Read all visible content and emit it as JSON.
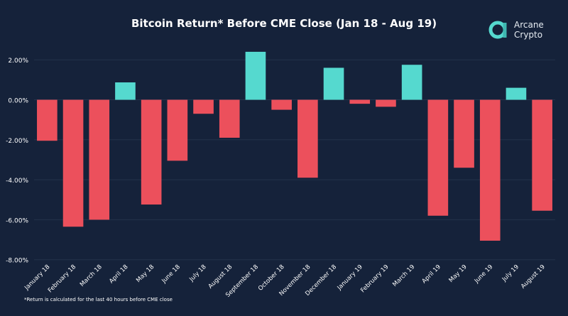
{
  "chart_data": {
    "type": "bar",
    "title": "Bitcoin Return* Before CME Close (Jan 18 - Aug 19)",
    "xlabel": "",
    "ylabel": "",
    "ylim": [
      -8,
      2.6
    ],
    "yticks": [
      2,
      0,
      -2,
      -4,
      -6,
      -8
    ],
    "ytick_labels": [
      "2.00%",
      "0.00%",
      "-2.00%",
      "-4.00%",
      "-6.00%",
      "-8.00%"
    ],
    "grid": true,
    "categories": [
      "January 18",
      "February 18",
      "March 18",
      "April 18",
      "May 18",
      "June 18",
      "July 18",
      "August 18",
      "September 18",
      "October 18",
      "November 18",
      "December 18",
      "January 19",
      "February 19",
      "March 19",
      "April 19",
      "May 19",
      "June 19",
      "July 19",
      "August 19"
    ],
    "values": [
      -2.05,
      -6.35,
      -6.0,
      0.87,
      -5.24,
      -3.05,
      -0.7,
      -1.9,
      2.4,
      -0.5,
      -3.9,
      1.6,
      -0.2,
      -0.35,
      1.75,
      -5.8,
      -3.4,
      -7.05,
      0.6,
      -5.55
    ],
    "unit": "%",
    "colors": {
      "positive": "#55d9cf",
      "negative": "#ec505c",
      "background": "#15223a",
      "grid": "#24324a"
    }
  },
  "logo": {
    "line1": "Arcane",
    "line2": "Crypto"
  },
  "footnote": "*Return is calculated for the last 40 hours before CME close"
}
